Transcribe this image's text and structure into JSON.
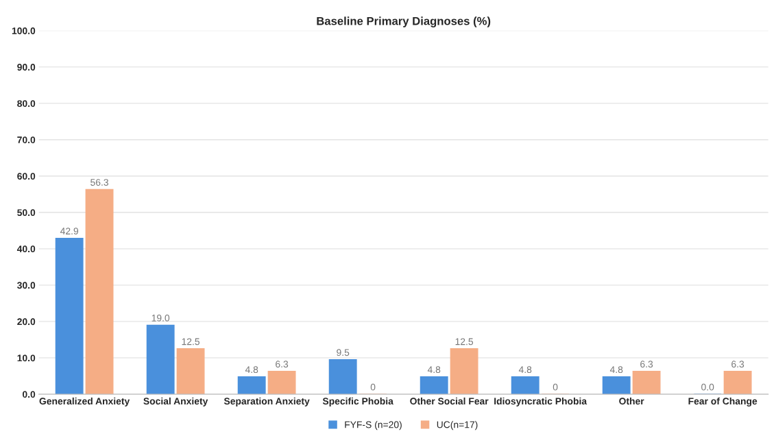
{
  "chart_data": {
    "type": "bar",
    "title": "Baseline Primary Diagnoses (%)",
    "categories": [
      "Generalized Anxiety",
      "Social Anxiety",
      "Separation Anxiety",
      "Specific Phobia",
      "Other Social Fear",
      "Idiosyncratic Phobia",
      "Other",
      "Fear of Change"
    ],
    "series": [
      {
        "name": "FYF-S (n=20)",
        "color": "#4a90dc",
        "values": [
          42.9,
          19.0,
          4.8,
          9.5,
          4.8,
          4.8,
          4.8,
          0.0
        ],
        "value_labels": [
          "42.9",
          "19.0",
          "4.8",
          "9.5",
          "4.8",
          "4.8",
          "4.8",
          "0.0"
        ]
      },
      {
        "name": "UC(n=17)",
        "color": "#f5ad85",
        "values": [
          56.3,
          12.5,
          6.3,
          0,
          12.5,
          0,
          6.3,
          6.3
        ],
        "value_labels": [
          "56.3",
          "12.5",
          "6.3",
          "0",
          "12.5",
          "0",
          "6.3",
          "6.3"
        ]
      }
    ],
    "ylim": [
      0,
      100
    ],
    "yticks": [
      {
        "value": 0,
        "label": "0.0"
      },
      {
        "value": 10,
        "label": "10.0"
      },
      {
        "value": 20,
        "label": "20.0"
      },
      {
        "value": 30,
        "label": "30.0"
      },
      {
        "value": 40,
        "label": "40.0"
      },
      {
        "value": 50,
        "label": "50.0"
      },
      {
        "value": 60,
        "label": "60.0"
      },
      {
        "value": 70,
        "label": "70.0"
      },
      {
        "value": 80,
        "label": "80.0"
      },
      {
        "value": 90,
        "label": "90.0"
      },
      {
        "value": 100,
        "label": "100.0"
      }
    ],
    "grid": "y",
    "legend": "bottom"
  }
}
